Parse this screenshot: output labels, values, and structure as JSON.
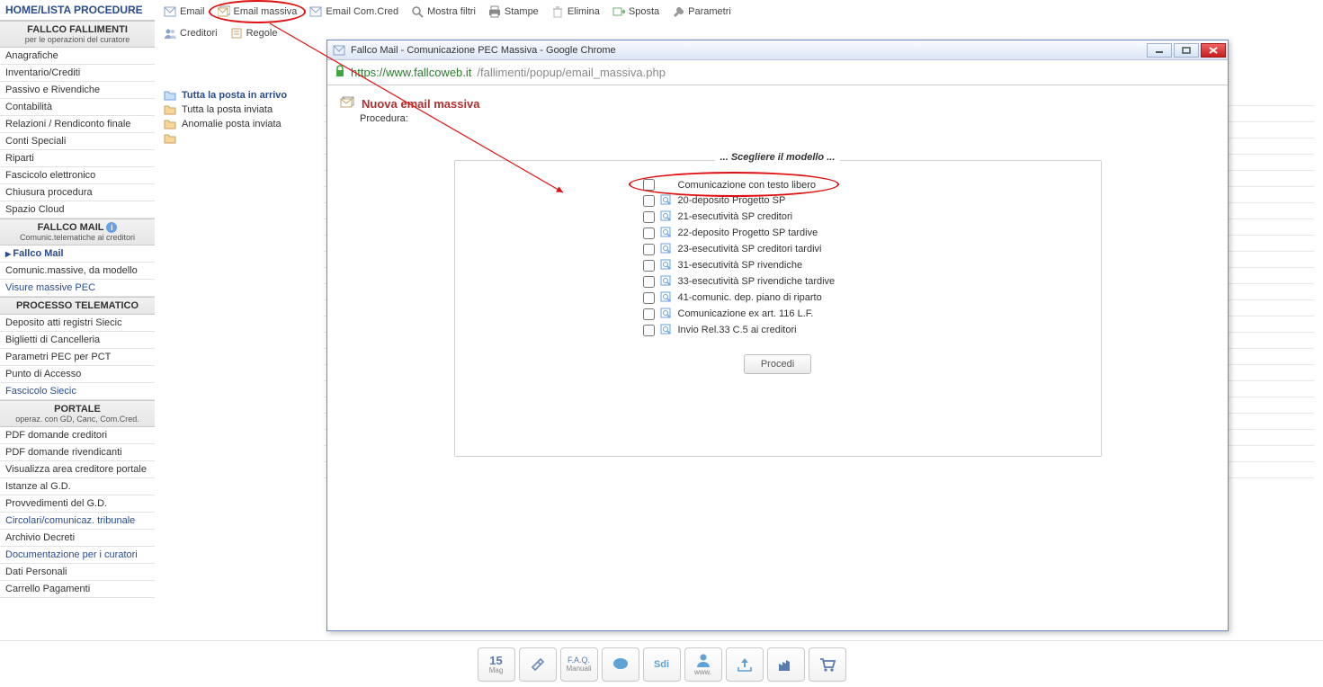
{
  "sidebar": {
    "home": "HOME/LISTA PROCEDURE",
    "sections": [
      {
        "title": "FALLCO FALLIMENTI",
        "sub": "per le operazioni del curatore",
        "items": [
          "Anagrafiche",
          "Inventario/Crediti",
          "Passivo e Rivendiche",
          "Contabilità",
          "Relazioni / Rendiconto finale",
          "Conti Speciali",
          "Riparti",
          "Fascicolo elettronico",
          "Chiusura procedura",
          "Spazio Cloud"
        ]
      },
      {
        "title": "FALLCO MAIL",
        "sub": "Comunic.telematiche ai creditori",
        "info": true,
        "items": [
          "Fallco Mail",
          "Comunic.massive, da modello",
          "Visure massive PEC"
        ],
        "active": 0,
        "links": [
          2
        ]
      },
      {
        "title": "PROCESSO TELEMATICO",
        "sub": "",
        "items": [
          "Deposito atti registri Siecic",
          "Biglietti di Cancelleria",
          "Parametri PEC per PCT",
          "Punto di Accesso",
          "Fascicolo Siecic"
        ],
        "links": [
          4
        ]
      },
      {
        "title": "PORTALE",
        "sub": "operaz. con GD, Canc, Com.Cred.",
        "items": [
          "PDF domande creditori",
          "PDF domande rivendicanti",
          "Visualizza area creditore portale",
          "Istanze al G.D.",
          "Provvedimenti del G.D.",
          "Circolari/comunicaz. tribunale",
          "Archivio Decreti",
          "Documentazione per i curatori",
          "Dati Personali",
          "Carrello Pagamenti"
        ],
        "links": [
          5,
          7
        ]
      }
    ]
  },
  "toolbar": {
    "row1": [
      {
        "label": "Email",
        "icon": "mail"
      },
      {
        "label": "Email massiva",
        "icon": "mail-multi",
        "circled": true
      },
      {
        "label": "Email Com.Cred",
        "icon": "mail"
      },
      {
        "label": "Mostra filtri",
        "icon": "search"
      },
      {
        "label": "Stampe",
        "icon": "printer"
      },
      {
        "label": "Elimina",
        "icon": "trash"
      },
      {
        "label": "Sposta",
        "icon": "move"
      },
      {
        "label": "Parametri",
        "icon": "wrench"
      }
    ],
    "row2": [
      {
        "label": "Creditori",
        "icon": "users"
      },
      {
        "label": "Regole",
        "icon": "rules"
      }
    ]
  },
  "folders": [
    {
      "label": "Tutta la posta in arrivo",
      "icon": "folder-open",
      "active": true
    },
    {
      "label": "Tutta la posta inviata",
      "icon": "folder"
    },
    {
      "label": "Anomalie posta inviata",
      "icon": "folder"
    },
    {
      "label": "",
      "icon": "folder"
    }
  ],
  "popup": {
    "title": "Fallco Mail - Comunicazione PEC Massiva - Google Chrome",
    "url_host": "https://www.fallcoweb.it",
    "url_path": "/fallimenti/popup/email_massiva.php",
    "heading": "Nuova email massiva",
    "proc_label": "Procedura:",
    "legend": "... Scegliere il modello ...",
    "models": [
      "Comunicazione con testo libero",
      "20-deposito Progetto SP",
      "21-esecutività SP creditori",
      "22-deposito Progetto SP tardive",
      "23-esecutività SP creditori tardivi",
      "31-esecutività SP rivendiche",
      "33-esecutività SP rivendiche tardive",
      "41-comunic. dep. piano di riparto",
      "Comunicazione ex art. 116 L.F.",
      "Invio Rel.33 C.5 ai creditori"
    ],
    "proceed": "Procedi"
  },
  "bottombar": {
    "date_day": "15",
    "date_mon": "Mag",
    "faq": "F.A.Q.",
    "manuali": "Manuali",
    "www": "www."
  },
  "colors": {
    "accent": "#2a4c8d",
    "highlight": "#e01010",
    "popup_title": "#b03030"
  },
  "annotation": {
    "arrow_from": [
      300,
      26
    ],
    "arrow_to": [
      626,
      214
    ]
  }
}
